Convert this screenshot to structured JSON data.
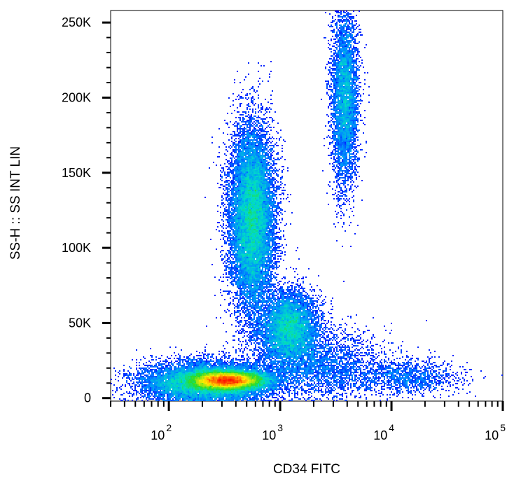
{
  "chart_data": {
    "type": "scatter",
    "subtype": "flow-cytometry-density-dot-plot",
    "xlabel": "CD34 FITC",
    "ylabel": "SS-H :: SS INT LIN",
    "x_scale": "log",
    "xlim": [
      30,
      100000
    ],
    "x_major_ticks": [
      {
        "value": 100,
        "base": "10",
        "exp": "2"
      },
      {
        "value": 1000,
        "base": "10",
        "exp": "3"
      },
      {
        "value": 10000,
        "base": "10",
        "exp": "4"
      },
      {
        "value": 100000,
        "base": "10",
        "exp": "5"
      }
    ],
    "y_scale": "linear",
    "ylim": [
      -2000,
      258000
    ],
    "y_ticks": [
      {
        "value": 0,
        "label": "0"
      },
      {
        "value": 50000,
        "label": "50K"
      },
      {
        "value": 100000,
        "label": "100K"
      },
      {
        "value": 150000,
        "label": "150K"
      },
      {
        "value": 200000,
        "label": "200K"
      },
      {
        "value": 250000,
        "label": "250K"
      }
    ],
    "grid": false,
    "color_scale": "density (blue → cyan → green → yellow → red)",
    "populations": [
      {
        "name": "",
        "x_center": 330,
        "y_center": 12000,
        "x_spread_log": 0.16,
        "y_spread": 3000,
        "weight": 0.3,
        "peak_color": "red"
      },
      {
        "name": "",
        "x_center": 220,
        "y_center": 10000,
        "x_spread_log": 0.3,
        "y_spread": 7000,
        "weight": 0.17
      },
      {
        "name": "",
        "x_center": 560,
        "y_center": 120000,
        "x_spread_log": 0.1,
        "y_spread": 30000,
        "weight": 0.24,
        "peak_color": "green"
      },
      {
        "name": "",
        "x_center": 1200,
        "y_center": 47000,
        "x_spread_log": 0.13,
        "y_spread": 12000,
        "weight": 0.11
      },
      {
        "name": "",
        "x_center": 3800,
        "y_center": 200000,
        "x_spread_log": 0.06,
        "y_spread": 30000,
        "weight": 0.08
      },
      {
        "name": "",
        "x_center": 2200,
        "y_center": 22000,
        "x_spread_log": 0.3,
        "y_spread": 12000,
        "weight": 0.05
      },
      {
        "name": "",
        "x_center": 14000,
        "y_center": 14000,
        "x_spread_log": 0.25,
        "y_spread": 6000,
        "weight": 0.02
      }
    ]
  }
}
